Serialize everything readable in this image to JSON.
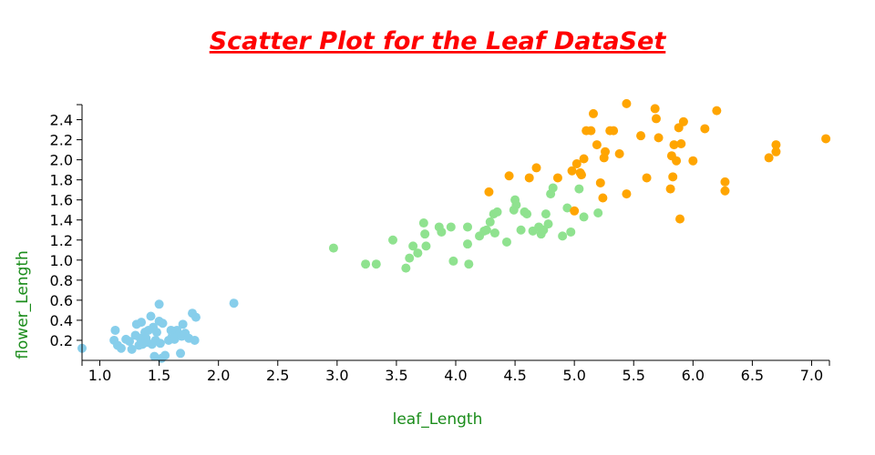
{
  "chart_data": {
    "type": "scatter",
    "title": "Scatter Plot for the Leaf DataSet",
    "xlabel": "leaf_Length",
    "ylabel": "flower_Length",
    "xlim": [
      0.85,
      7.15
    ],
    "ylim": [
      0,
      2.55
    ],
    "x_ticks": [
      "1.0",
      "1.5",
      "2.0",
      "2.5",
      "3.0",
      "3.5",
      "4.0",
      "4.5",
      "5.0",
      "5.5",
      "6.0",
      "6.5",
      "7.0"
    ],
    "y_ticks": [
      "0.2",
      "0.4",
      "0.6",
      "0.8",
      "1.0",
      "1.2",
      "1.4",
      "1.6",
      "1.8",
      "2.0",
      "2.2",
      "2.4"
    ],
    "grid": false,
    "legend": "none",
    "series": [
      {
        "color": "#87ceeb",
        "points": [
          [
            0.85,
            0.12
          ],
          [
            1.12,
            0.2
          ],
          [
            1.13,
            0.3
          ],
          [
            1.15,
            0.15
          ],
          [
            1.18,
            0.12
          ],
          [
            1.22,
            0.21
          ],
          [
            1.25,
            0.19
          ],
          [
            1.27,
            0.11
          ],
          [
            1.3,
            0.25
          ],
          [
            1.31,
            0.36
          ],
          [
            1.33,
            0.15
          ],
          [
            1.34,
            0.22
          ],
          [
            1.35,
            0.38
          ],
          [
            1.36,
            0.16
          ],
          [
            1.38,
            0.28
          ],
          [
            1.39,
            0.22
          ],
          [
            1.4,
            0.18
          ],
          [
            1.41,
            0.3
          ],
          [
            1.43,
            0.44
          ],
          [
            1.44,
            0.16
          ],
          [
            1.45,
            0.33
          ],
          [
            1.46,
            0.04
          ],
          [
            1.47,
            0.2
          ],
          [
            1.48,
            0.28
          ],
          [
            1.5,
            0.56
          ],
          [
            1.5,
            0.39
          ],
          [
            1.51,
            0.17
          ],
          [
            1.52,
            0.02
          ],
          [
            1.53,
            0.37
          ],
          [
            1.55,
            0.05
          ],
          [
            1.58,
            0.2
          ],
          [
            1.6,
            0.3
          ],
          [
            1.61,
            0.24
          ],
          [
            1.63,
            0.21
          ],
          [
            1.65,
            0.3
          ],
          [
            1.67,
            0.26
          ],
          [
            1.68,
            0.07
          ],
          [
            1.69,
            0.24
          ],
          [
            1.7,
            0.36
          ],
          [
            1.72,
            0.27
          ],
          [
            1.75,
            0.22
          ],
          [
            1.78,
            0.47
          ],
          [
            1.8,
            0.2
          ],
          [
            1.81,
            0.43
          ],
          [
            2.13,
            0.57
          ]
        ]
      },
      {
        "color": "#8fe28f",
        "points": [
          [
            2.97,
            1.12
          ],
          [
            3.24,
            0.96
          ],
          [
            3.33,
            0.96
          ],
          [
            3.47,
            1.2
          ],
          [
            3.58,
            0.92
          ],
          [
            3.61,
            1.02
          ],
          [
            3.64,
            1.14
          ],
          [
            3.68,
            1.07
          ],
          [
            3.73,
            1.37
          ],
          [
            3.74,
            1.26
          ],
          [
            3.75,
            1.14
          ],
          [
            3.86,
            1.33
          ],
          [
            3.88,
            1.28
          ],
          [
            3.96,
            1.33
          ],
          [
            3.98,
            0.99
          ],
          [
            4.1,
            1.33
          ],
          [
            4.1,
            1.16
          ],
          [
            4.11,
            0.96
          ],
          [
            4.2,
            1.24
          ],
          [
            4.24,
            1.29
          ],
          [
            4.26,
            1.3
          ],
          [
            4.29,
            1.38
          ],
          [
            4.32,
            1.46
          ],
          [
            4.33,
            1.27
          ],
          [
            4.35,
            1.48
          ],
          [
            4.43,
            1.18
          ],
          [
            4.49,
            1.5
          ],
          [
            4.5,
            1.6
          ],
          [
            4.51,
            1.55
          ],
          [
            4.55,
            1.3
          ],
          [
            4.58,
            1.48
          ],
          [
            4.6,
            1.46
          ],
          [
            4.65,
            1.29
          ],
          [
            4.7,
            1.33
          ],
          [
            4.72,
            1.26
          ],
          [
            4.74,
            1.3
          ],
          [
            4.76,
            1.46
          ],
          [
            4.78,
            1.36
          ],
          [
            4.8,
            1.66
          ],
          [
            4.82,
            1.72
          ],
          [
            4.9,
            1.24
          ],
          [
            4.94,
            1.52
          ],
          [
            4.97,
            1.28
          ],
          [
            5.04,
            1.71
          ],
          [
            5.08,
            1.43
          ],
          [
            5.2,
            1.47
          ]
        ]
      },
      {
        "color": "#ffa500",
        "points": [
          [
            4.28,
            1.68
          ],
          [
            4.45,
            1.84
          ],
          [
            4.62,
            1.82
          ],
          [
            4.68,
            1.92
          ],
          [
            4.86,
            1.82
          ],
          [
            4.98,
            1.89
          ],
          [
            5.0,
            1.49
          ],
          [
            5.02,
            1.96
          ],
          [
            5.05,
            1.87
          ],
          [
            5.06,
            1.85
          ],
          [
            5.08,
            2.01
          ],
          [
            5.1,
            2.29
          ],
          [
            5.14,
            2.29
          ],
          [
            5.16,
            2.46
          ],
          [
            5.19,
            2.15
          ],
          [
            5.22,
            1.77
          ],
          [
            5.24,
            1.62
          ],
          [
            5.25,
            2.02
          ],
          [
            5.26,
            2.08
          ],
          [
            5.3,
            2.29
          ],
          [
            5.33,
            2.29
          ],
          [
            5.38,
            2.06
          ],
          [
            5.44,
            2.56
          ],
          [
            5.44,
            1.66
          ],
          [
            5.56,
            2.24
          ],
          [
            5.61,
            1.82
          ],
          [
            5.68,
            2.51
          ],
          [
            5.69,
            2.41
          ],
          [
            5.71,
            2.22
          ],
          [
            5.81,
            1.71
          ],
          [
            5.82,
            2.04
          ],
          [
            5.83,
            1.83
          ],
          [
            5.84,
            2.15
          ],
          [
            5.86,
            1.99
          ],
          [
            5.88,
            2.32
          ],
          [
            5.89,
            1.41
          ],
          [
            5.9,
            2.16
          ],
          [
            5.92,
            2.38
          ],
          [
            6.0,
            1.99
          ],
          [
            6.1,
            2.31
          ],
          [
            6.2,
            2.49
          ],
          [
            6.27,
            1.78
          ],
          [
            6.27,
            1.69
          ],
          [
            6.64,
            2.02
          ],
          [
            6.7,
            2.15
          ],
          [
            6.7,
            2.08
          ],
          [
            7.12,
            2.21
          ]
        ]
      }
    ]
  }
}
